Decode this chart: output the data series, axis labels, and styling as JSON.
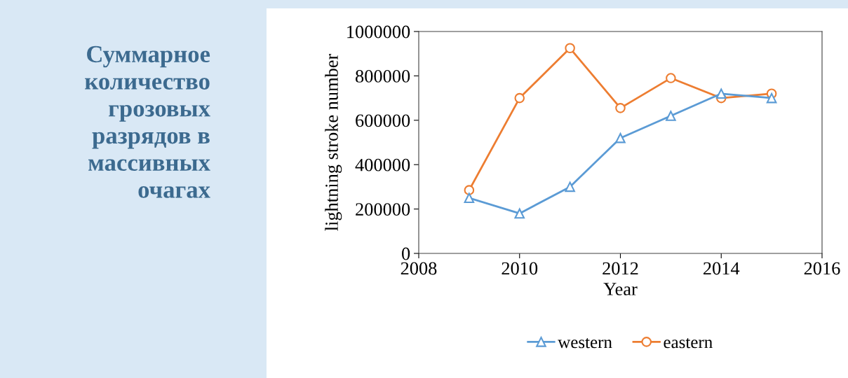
{
  "chart_data": {
    "type": "line",
    "title": "Суммарное\nколичество\nгрозовых\nразрядов в\nмассивных\nочагах",
    "xlabel": "Year",
    "ylabel": "lightning stroke number",
    "x": [
      2009,
      2010,
      2011,
      2012,
      2013,
      2014,
      2015
    ],
    "series": [
      {
        "name": "western",
        "color": "#5b9bd5",
        "marker": "triangle",
        "values": [
          250000,
          180000,
          300000,
          520000,
          620000,
          720000,
          700000
        ]
      },
      {
        "name": "eastern",
        "color": "#ed7d31",
        "marker": "circle",
        "values": [
          285000,
          700000,
          925000,
          655000,
          790000,
          700000,
          720000
        ]
      }
    ],
    "xlim": [
      2008,
      2016
    ],
    "xticks": [
      2008,
      2010,
      2012,
      2014,
      2016
    ],
    "ylim": [
      0,
      1000000
    ],
    "yticks": [
      0,
      200000,
      400000,
      600000,
      800000,
      1000000
    ],
    "grid": false,
    "legend": "bottom",
    "line_style": "solid"
  }
}
